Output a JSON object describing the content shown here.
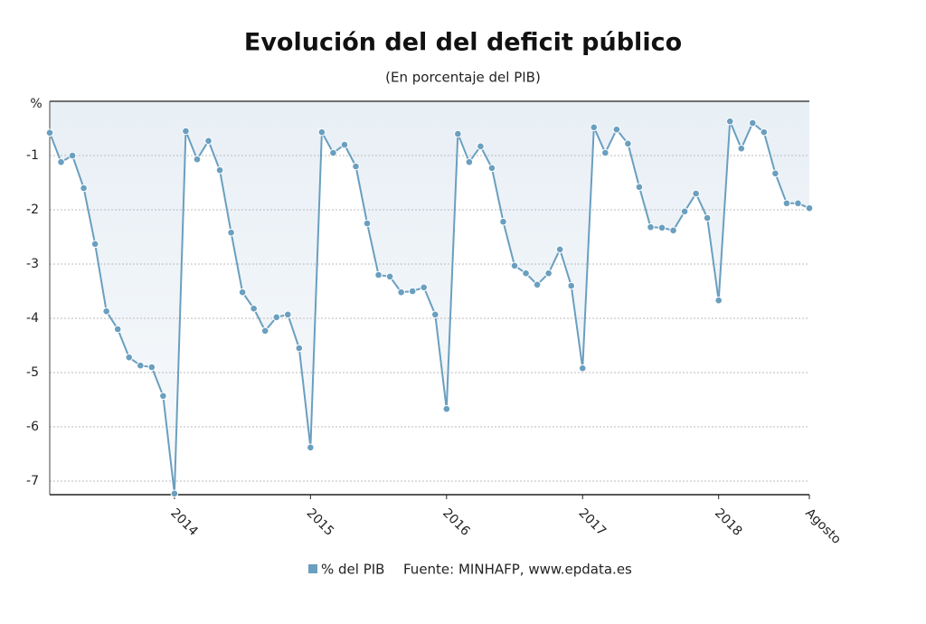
{
  "chart_data": {
    "type": "line",
    "title": "Evolución del del deficit público",
    "subtitle": "(En porcentaje del PIB)",
    "y_label": "%",
    "source": "Fuente: MINHAFP, www.epdata.es",
    "categories": [
      null,
      null,
      null,
      null,
      null,
      null,
      null,
      null,
      null,
      null,
      null,
      "2014",
      null,
      null,
      null,
      null,
      null,
      null,
      null,
      null,
      null,
      null,
      null,
      "2015",
      null,
      null,
      null,
      null,
      null,
      null,
      null,
      null,
      null,
      null,
      null,
      "2016",
      null,
      null,
      null,
      null,
      null,
      null,
      null,
      null,
      null,
      null,
      null,
      "2017",
      null,
      null,
      null,
      null,
      null,
      null,
      null,
      null,
      null,
      null,
      null,
      "2018",
      null,
      null,
      null,
      null,
      null,
      null,
      null,
      "Agosto"
    ],
    "series": [
      {
        "name": "% del PIB",
        "color": "#6a9fbf",
        "values": [
          -0.58,
          -1.12,
          -1.0,
          -1.6,
          -2.63,
          -3.87,
          -4.2,
          -4.72,
          -4.87,
          -4.9,
          -5.43,
          -7.23,
          -0.55,
          -1.07,
          -0.73,
          -1.27,
          -2.42,
          -3.52,
          -3.82,
          -4.23,
          -3.98,
          -3.93,
          -4.55,
          -6.38,
          -0.57,
          -0.95,
          -0.8,
          -1.2,
          -2.25,
          -3.2,
          -3.23,
          -3.52,
          -3.5,
          -3.43,
          -3.93,
          -5.67,
          -0.6,
          -1.12,
          -0.83,
          -1.23,
          -2.22,
          -3.03,
          -3.17,
          -3.38,
          -3.17,
          -2.73,
          -3.4,
          -4.92,
          -0.48,
          -0.95,
          -0.52,
          -0.78,
          -1.58,
          -2.32,
          -2.33,
          -2.38,
          -2.03,
          -1.7,
          -2.15,
          -3.67,
          -0.37,
          -0.87,
          -0.4,
          -0.57,
          -1.33,
          -1.88,
          -1.88,
          -1.97
        ]
      }
    ],
    "ylim": [
      -7.25,
      0
    ],
    "yticks": [
      -1,
      -2,
      -3,
      -4,
      -5,
      -6,
      -7
    ],
    "grid": true
  }
}
